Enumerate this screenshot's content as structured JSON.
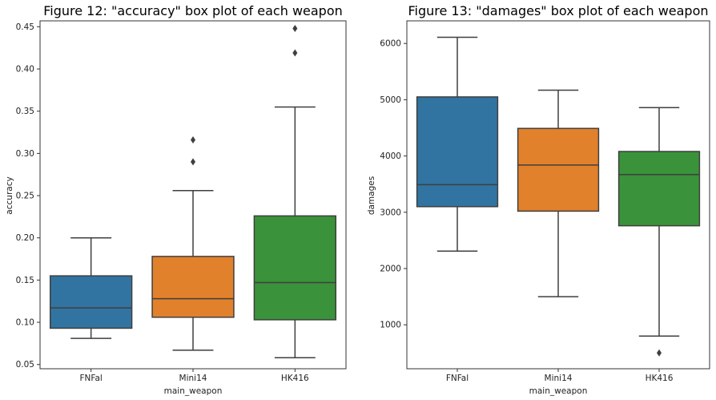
{
  "chart_data": [
    {
      "type": "box",
      "title": "Figure 12: \"accuracy\" box plot of each weapon",
      "xlabel": "main_weapon",
      "ylabel": "accuracy",
      "ylim": [
        0.045,
        0.457
      ],
      "yticks": [
        "0.05",
        "0.10",
        "0.15",
        "0.20",
        "0.25",
        "0.30",
        "0.35",
        "0.40",
        "0.45"
      ],
      "categories": [
        "FNFal",
        "Mini14",
        "HK416"
      ],
      "colors": [
        "#3274a1",
        "#e1812c",
        "#3a923a"
      ],
      "boxes": [
        {
          "whislo": 0.081,
          "q1": 0.093,
          "med": 0.117,
          "q3": 0.155,
          "whishi": 0.2,
          "fliers": []
        },
        {
          "whislo": 0.067,
          "q1": 0.106,
          "med": 0.128,
          "q3": 0.178,
          "whishi": 0.256,
          "fliers": [
            0.29,
            0.316
          ]
        },
        {
          "whislo": 0.058,
          "q1": 0.103,
          "med": 0.147,
          "q3": 0.226,
          "whishi": 0.355,
          "fliers": [
            0.419,
            0.448
          ]
        }
      ]
    },
    {
      "type": "box",
      "title": "Figure 13: \"damages\" box plot of each weapon",
      "xlabel": "main_weapon",
      "ylabel": "damages",
      "ylim": [
        219,
        6402
      ],
      "yticks": [
        "1000",
        "2000",
        "3000",
        "4000",
        "5000",
        "6000"
      ],
      "categories": [
        "FNFal",
        "Mini14",
        "HK416"
      ],
      "colors": [
        "#3274a1",
        "#e1812c",
        "#3a923a"
      ],
      "boxes": [
        {
          "whislo": 2310,
          "q1": 3100,
          "med": 3490,
          "q3": 5050,
          "whishi": 6110,
          "fliers": []
        },
        {
          "whislo": 1500,
          "q1": 3020,
          "med": 3840,
          "q3": 4490,
          "whishi": 5170,
          "fliers": []
        },
        {
          "whislo": 800,
          "q1": 2760,
          "med": 3670,
          "q3": 4080,
          "whishi": 4860,
          "fliers": [
            500
          ]
        }
      ]
    }
  ]
}
